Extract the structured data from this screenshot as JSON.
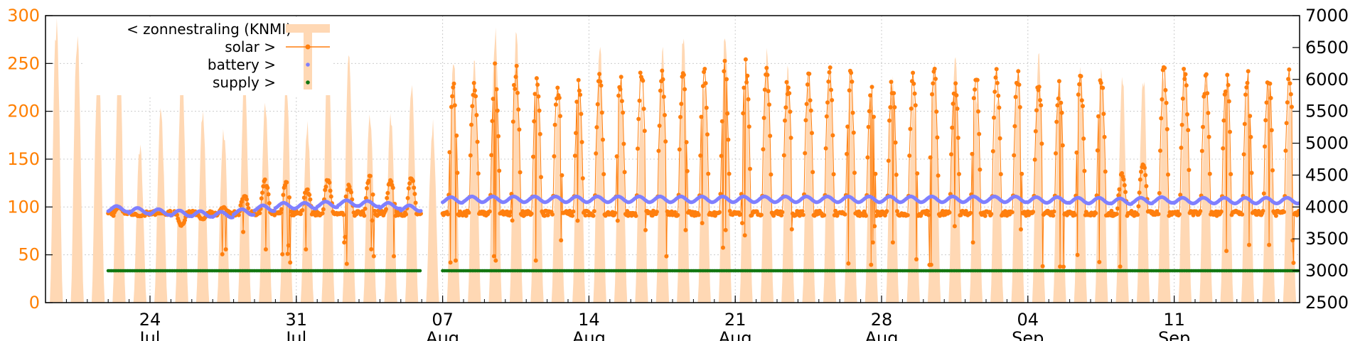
{
  "colors": {
    "radiation": "#ffd8b4",
    "solar": "#ff7f0e",
    "battery": "#8080ff",
    "supply": "#117711",
    "left_axis": "#ff7f00",
    "grid": "#cccccc"
  },
  "legend": [
    {
      "key": "radiation",
      "label": "< zonnestraling (KNMI)"
    },
    {
      "key": "solar",
      "label": "solar >"
    },
    {
      "key": "battery",
      "label": "battery >"
    },
    {
      "key": "supply",
      "label": "supply >"
    }
  ],
  "chart_data": {
    "type": "line",
    "x_axis": {
      "start": "2023-07-19",
      "end": "2023-09-17",
      "ticks": [
        {
          "day": "24",
          "month": "Jul"
        },
        {
          "day": "31",
          "month": "Jul"
        },
        {
          "day": "07",
          "month": "Aug"
        },
        {
          "day": "14",
          "month": "Aug"
        },
        {
          "day": "21",
          "month": "Aug"
        },
        {
          "day": "28",
          "month": "Aug"
        },
        {
          "day": "04",
          "month": "Sep"
        },
        {
          "day": "11",
          "month": "Sep"
        }
      ]
    },
    "y_left": {
      "range": [
        0,
        300
      ],
      "ticks": [
        "0",
        "50",
        "100",
        "150",
        "200",
        "250",
        "300"
      ]
    },
    "y_right": {
      "range": [
        2500,
        7000
      ],
      "ticks": [
        "2500",
        "3000",
        "3500",
        "4000",
        "4500",
        "5000",
        "5500",
        "6000",
        "6500",
        "7000"
      ]
    },
    "grid": true,
    "legend_position": "top-left",
    "series": [
      {
        "key": "radiation",
        "axis": "left",
        "style": "filled area",
        "daily_peak": [
          300,
          290,
          270,
          275,
          170,
          210,
          260,
          205,
          190,
          245,
          215,
          240,
          195,
          270,
          265,
          205,
          200,
          245,
          195,
          265,
          255,
          300,
          290,
          240,
          225,
          250,
          280,
          245,
          230,
          275,
          290,
          240,
          300,
          245,
          270,
          255,
          245,
          255,
          245,
          235,
          240,
          235,
          260,
          275,
          235,
          230,
          250,
          265,
          250,
          260,
          255,
          245,
          250,
          255,
          250,
          240,
          245,
          250,
          240,
          235
        ]
      },
      {
        "key": "solar",
        "axis": "right",
        "style": "line with points",
        "daily_peak": [
          null,
          null,
          null,
          4000,
          3850,
          3900,
          3700,
          3800,
          4000,
          4200,
          4450,
          4400,
          4300,
          4450,
          4350,
          4500,
          4450,
          4500,
          null,
          6100,
          6100,
          6300,
          6300,
          6150,
          6000,
          6000,
          6200,
          6150,
          6250,
          6200,
          6250,
          6250,
          6300,
          6350,
          6300,
          6100,
          6200,
          6250,
          6200,
          6100,
          6100,
          6200,
          6250,
          6200,
          6250,
          6200,
          6200,
          6150,
          6050,
          6200,
          6200,
          4550,
          4750,
          6300,
          6300,
          6200,
          6250,
          6200,
          6300,
          6300
        ],
        "night_level": 3900
      },
      {
        "key": "battery",
        "axis": "right",
        "style": "points",
        "daily_mean": [
          null,
          null,
          null,
          3970,
          3940,
          3920,
          3900,
          3890,
          3880,
          3920,
          3980,
          4020,
          4020,
          4040,
          4060,
          4050,
          4020,
          3980,
          null,
          4110,
          4120,
          4120,
          4120,
          4120,
          4120,
          4120,
          4120,
          4120,
          4120,
          4120,
          4120,
          4120,
          4120,
          4120,
          4120,
          4120,
          4120,
          4120,
          4120,
          4120,
          4120,
          4120,
          4120,
          4120,
          4120,
          4120,
          4120,
          4110,
          4110,
          4100,
          4100,
          4090,
          4100,
          4110,
          4100,
          4100,
          4100,
          4100,
          4100,
          4100
        ]
      },
      {
        "key": "supply",
        "axis": "right",
        "style": "points",
        "level": 3000
      }
    ]
  }
}
